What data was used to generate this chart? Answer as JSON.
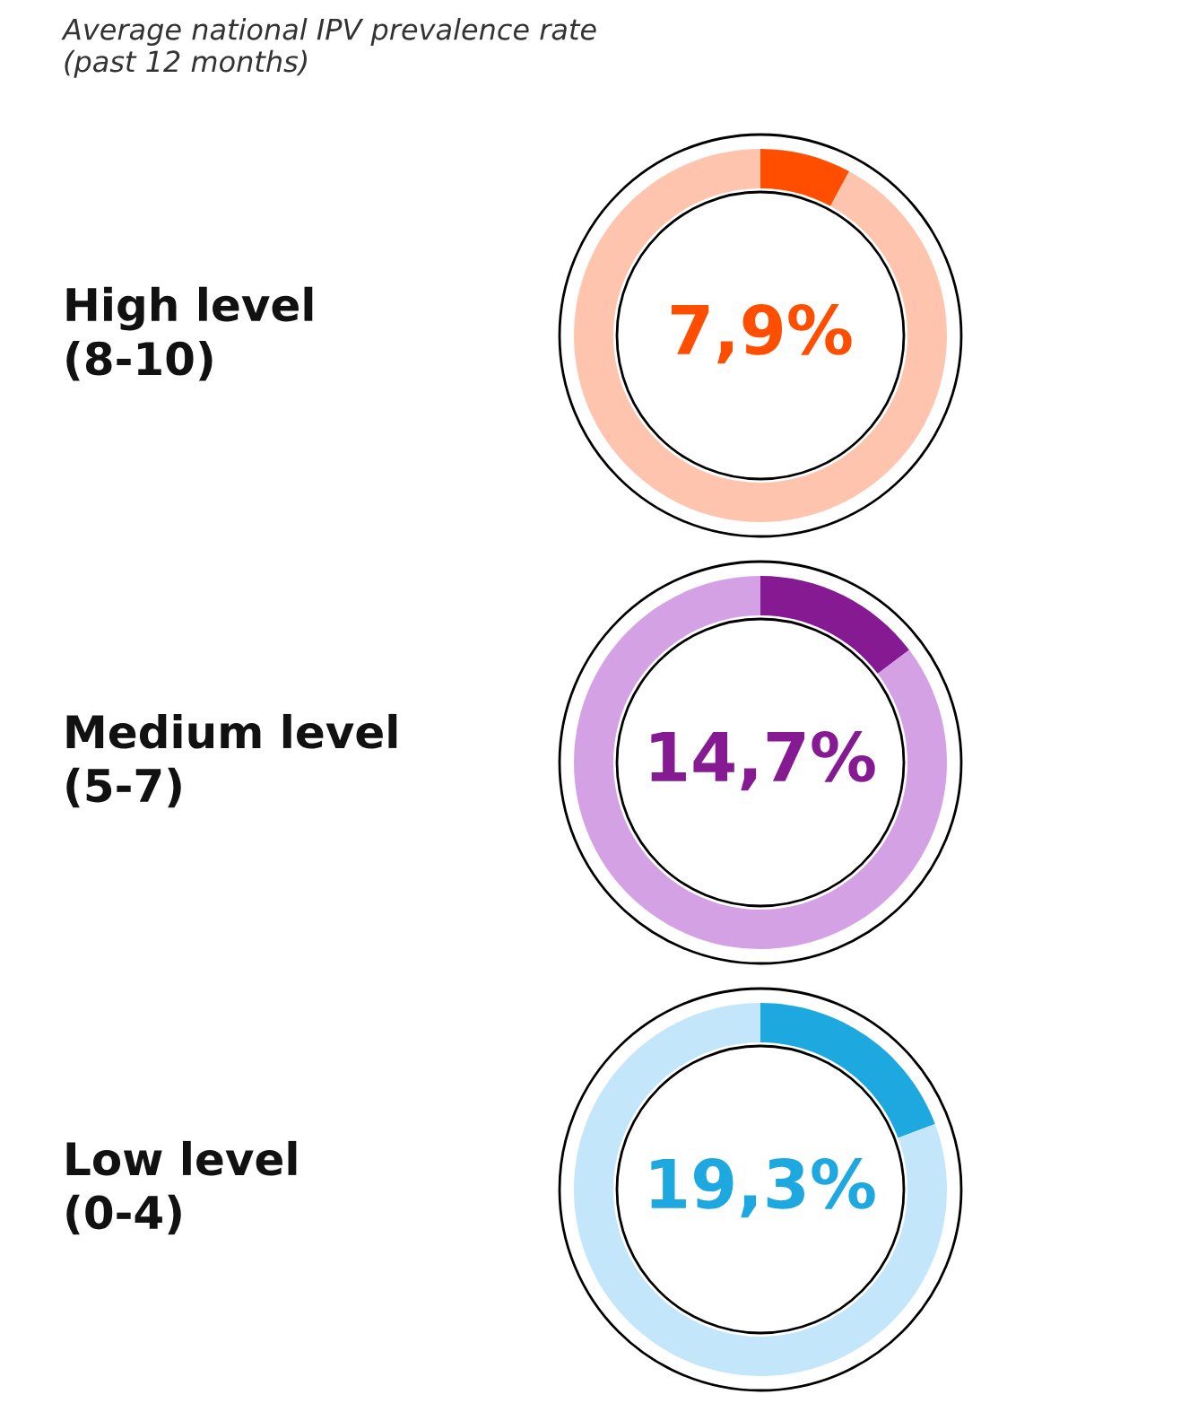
{
  "chart_data": [
    {
      "type": "donut",
      "subtitle": "Average national IPV prevalence rate\n(past 12 months)",
      "title": "High level\n(8-10)",
      "categories": [
        null,
        null
      ],
      "values": [
        7.9,
        92.1
      ],
      "colors": [
        "#ff4e00",
        "#ffc4ae"
      ],
      "value_labels": [
        "7,9%",
        null
      ]
    },
    {
      "type": "donut",
      "title": "Medium level\n(5-7)",
      "categories": [
        null,
        null
      ],
      "values": [
        14.7,
        85.3
      ],
      "colors": [
        "#861a93",
        "#d4a2e4"
      ],
      "value_labels": [
        "14,7%",
        null
      ]
    },
    {
      "type": "donut",
      "title": "Low level\n(0-4)",
      "categories": [
        null,
        null
      ],
      "values": [
        19.3,
        80.7
      ],
      "colors": [
        "#1ea8e0",
        "#c4e6fb"
      ],
      "value_labels": [
        "19,3%",
        null
      ]
    }
  ]
}
